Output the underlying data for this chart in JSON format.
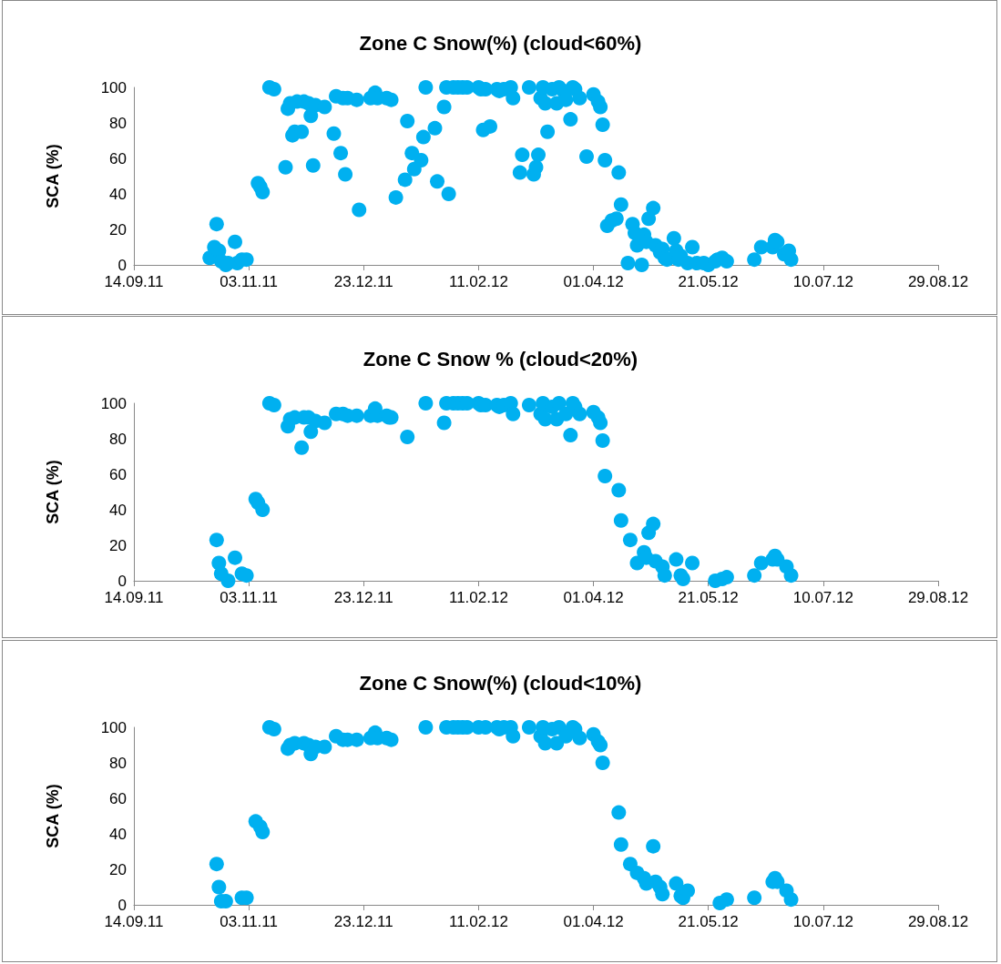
{
  "chart_data": [
    {
      "type": "scatter",
      "title": "Zone C Snow(%) (cloud<60%)",
      "ylabel": "SCA (%)",
      "marker": "circle",
      "color": "#00b0f0",
      "grid": false,
      "xlim": [
        "2011-09-14",
        "2012-08-29"
      ],
      "xticks": [
        {
          "value": "2011-09-14",
          "label": "14.09.11"
        },
        {
          "value": "2011-11-03",
          "label": "03.11.11"
        },
        {
          "value": "2011-12-23",
          "label": "23.12.11"
        },
        {
          "value": "2012-02-11",
          "label": "11.02.12"
        },
        {
          "value": "2012-04-01",
          "label": "01.04.12"
        },
        {
          "value": "2012-05-21",
          "label": "21.05.12"
        },
        {
          "value": "2012-07-10",
          "label": "10.07.12"
        },
        {
          "value": "2012-08-29",
          "label": "29.08.12"
        }
      ],
      "ylim": [
        0,
        100
      ],
      "yticks": [
        0,
        20,
        40,
        60,
        80,
        100
      ],
      "x": [
        "2011-10-17",
        "2011-10-19",
        "2011-10-20",
        "2011-10-21",
        "2011-10-22",
        "2011-10-24",
        "2011-10-25",
        "2011-10-28",
        "2011-10-29",
        "2011-10-31",
        "2011-11-02",
        "2011-11-07",
        "2011-11-08",
        "2011-11-09",
        "2011-11-12",
        "2011-11-14",
        "2011-11-19",
        "2011-11-20",
        "2011-11-21",
        "2011-11-22",
        "2011-11-23",
        "2011-11-24",
        "2011-11-26",
        "2011-11-27",
        "2011-11-29",
        "2011-11-30",
        "2011-12-01",
        "2011-12-02",
        "2011-12-06",
        "2011-12-10",
        "2011-12-11",
        "2011-12-13",
        "2011-12-14",
        "2011-12-15",
        "2011-12-16",
        "2011-12-20",
        "2011-12-21",
        "2011-12-26",
        "2011-12-28",
        "2011-12-29",
        "2012-01-02",
        "2012-01-04",
        "2012-01-06",
        "2012-01-10",
        "2012-01-11",
        "2012-01-13",
        "2012-01-14",
        "2012-01-17",
        "2012-01-18",
        "2012-01-19",
        "2012-01-23",
        "2012-01-24",
        "2012-01-27",
        "2012-01-29",
        "2012-01-28",
        "2012-01-31",
        "2012-02-02",
        "2012-02-04",
        "2012-02-06",
        "2012-02-11",
        "2012-02-12",
        "2012-02-13",
        "2012-02-14",
        "2012-02-16",
        "2012-02-19",
        "2012-02-20",
        "2012-02-22",
        "2012-02-25",
        "2012-02-26",
        "2012-02-29",
        "2012-03-01",
        "2012-03-04",
        "2012-03-06",
        "2012-03-07",
        "2012-03-08",
        "2012-03-09",
        "2012-03-10",
        "2012-03-11",
        "2012-03-12",
        "2012-03-14",
        "2012-03-16",
        "2012-03-17",
        "2012-03-19",
        "2012-03-20",
        "2012-03-22",
        "2012-03-23",
        "2012-03-24",
        "2012-03-26",
        "2012-03-29",
        "2012-04-01",
        "2012-04-03",
        "2012-04-04",
        "2012-04-05",
        "2012-04-06",
        "2012-04-07",
        "2012-04-09",
        "2012-04-11",
        "2012-04-12",
        "2012-04-13",
        "2012-04-16",
        "2012-04-18",
        "2012-04-19",
        "2012-04-20",
        "2012-04-22",
        "2012-04-23",
        "2012-04-24",
        "2012-04-25",
        "2012-04-27",
        "2012-04-28",
        "2012-04-30",
        "2012-05-01",
        "2012-05-02",
        "2012-05-03",
        "2012-05-06",
        "2012-05-07",
        "2012-05-08",
        "2012-05-09",
        "2012-05-12",
        "2012-05-14",
        "2012-05-16",
        "2012-05-19",
        "2012-05-21",
        "2012-05-24",
        "2012-05-25",
        "2012-05-27",
        "2012-05-29",
        "2012-06-10",
        "2012-06-13",
        "2012-06-18",
        "2012-06-19",
        "2012-06-20",
        "2012-06-23",
        "2012-06-25",
        "2012-06-26"
      ],
      "values": [
        4,
        10,
        23,
        8,
        2,
        0,
        1,
        13,
        1,
        3,
        3,
        46,
        44,
        41,
        100,
        99,
        55,
        88,
        91,
        73,
        75,
        92,
        75,
        92,
        91,
        84,
        56,
        90,
        89,
        74,
        95,
        63,
        94,
        51,
        94,
        93,
        31,
        94,
        97,
        94,
        94,
        93,
        38,
        48,
        81,
        63,
        54,
        59,
        72,
        100,
        77,
        47,
        89,
        40,
        100,
        100,
        100,
        100,
        100,
        100,
        99,
        76,
        99,
        78,
        99,
        98,
        99,
        100,
        94,
        52,
        62,
        100,
        51,
        55,
        62,
        94,
        100,
        91,
        75,
        99,
        91,
        100,
        98,
        93,
        82,
        100,
        99,
        94,
        61,
        96,
        92,
        89,
        79,
        59,
        22,
        25,
        26,
        52,
        34,
        1,
        23,
        18,
        11,
        0,
        17,
        13,
        26,
        32,
        11,
        7,
        9,
        4,
        3,
        15,
        8,
        3,
        5,
        1,
        10,
        1,
        1,
        0,
        2,
        3,
        4,
        2,
        3,
        10,
        10,
        14,
        13,
        6,
        8,
        3
      ]
    },
    {
      "type": "scatter",
      "title": "Zone C Snow % (cloud<20%)",
      "ylabel": "SCA (%)",
      "marker": "circle",
      "color": "#00b0f0",
      "grid": false,
      "xlim": [
        "2011-09-14",
        "2012-08-29"
      ],
      "xticks": [
        {
          "value": "2011-09-14",
          "label": "14.09.11"
        },
        {
          "value": "2011-11-03",
          "label": "03.11.11"
        },
        {
          "value": "2011-12-23",
          "label": "23.12.11"
        },
        {
          "value": "2012-02-11",
          "label": "11.02.12"
        },
        {
          "value": "2012-04-01",
          "label": "01.04.12"
        },
        {
          "value": "2012-05-21",
          "label": "21.05.12"
        },
        {
          "value": "2012-07-10",
          "label": "10.07.12"
        },
        {
          "value": "2012-08-29",
          "label": "29.08.12"
        }
      ],
      "ylim": [
        0,
        100
      ],
      "yticks": [
        0,
        20,
        40,
        60,
        80,
        100
      ],
      "x": [
        "2011-10-20",
        "2011-10-21",
        "2011-10-22",
        "2011-10-25",
        "2011-10-28",
        "2011-10-31",
        "2011-11-02",
        "2011-11-06",
        "2011-11-07",
        "2011-11-09",
        "2011-11-12",
        "2011-11-14",
        "2011-11-20",
        "2011-11-21",
        "2011-11-23",
        "2011-11-26",
        "2011-11-27",
        "2011-11-29",
        "2011-11-30",
        "2011-12-02",
        "2011-12-06",
        "2011-12-11",
        "2011-12-14",
        "2011-12-16",
        "2011-12-20",
        "2011-12-26",
        "2011-12-28",
        "2011-12-29",
        "2012-01-02",
        "2012-01-03",
        "2012-01-04",
        "2012-01-11",
        "2012-01-19",
        "2012-01-27",
        "2012-01-28",
        "2012-01-31",
        "2012-02-02",
        "2012-02-04",
        "2012-02-06",
        "2012-02-11",
        "2012-02-12",
        "2012-02-14",
        "2012-02-19",
        "2012-02-20",
        "2012-02-22",
        "2012-02-25",
        "2012-02-26",
        "2012-03-04",
        "2012-03-09",
        "2012-03-10",
        "2012-03-11",
        "2012-03-14",
        "2012-03-16",
        "2012-03-17",
        "2012-03-20",
        "2012-03-22",
        "2012-03-23",
        "2012-03-24",
        "2012-03-26",
        "2012-04-01",
        "2012-04-03",
        "2012-04-04",
        "2012-04-05",
        "2012-04-06",
        "2012-04-12",
        "2012-04-13",
        "2012-04-17",
        "2012-04-20",
        "2012-04-23",
        "2012-04-24",
        "2012-04-25",
        "2012-04-27",
        "2012-04-28",
        "2012-05-01",
        "2012-05-02",
        "2012-05-07",
        "2012-05-09",
        "2012-05-10",
        "2012-05-14",
        "2012-05-24",
        "2012-05-27",
        "2012-05-29",
        "2012-06-10",
        "2012-06-13",
        "2012-06-18",
        "2012-06-19",
        "2012-06-20",
        "2012-06-24",
        "2012-06-26"
      ],
      "values": [
        23,
        10,
        4,
        0,
        13,
        4,
        3,
        46,
        44,
        40,
        100,
        99,
        87,
        91,
        92,
        75,
        92,
        92,
        84,
        90,
        89,
        94,
        94,
        93,
        93,
        93,
        97,
        93,
        93,
        92,
        92,
        81,
        100,
        89,
        100,
        100,
        100,
        100,
        100,
        100,
        99,
        99,
        99,
        98,
        99,
        100,
        94,
        99,
        94,
        100,
        91,
        98,
        91,
        100,
        94,
        82,
        100,
        98,
        94,
        95,
        92,
        89,
        79,
        59,
        51,
        34,
        23,
        10,
        16,
        13,
        27,
        32,
        11,
        8,
        3,
        12,
        3,
        1,
        10,
        0,
        1,
        2,
        3,
        10,
        12,
        14,
        12,
        8,
        3
      ]
    },
    {
      "type": "scatter",
      "title": "Zone C Snow(%) (cloud<10%)",
      "ylabel": "SCA (%)",
      "marker": "circle",
      "color": "#00b0f0",
      "grid": false,
      "xlim": [
        "2011-09-14",
        "2012-08-29"
      ],
      "xticks": [
        {
          "value": "2011-09-14",
          "label": "14.09.11"
        },
        {
          "value": "2011-11-03",
          "label": "03.11.11"
        },
        {
          "value": "2011-12-23",
          "label": "23.12.11"
        },
        {
          "value": "2012-02-11",
          "label": "11.02.12"
        },
        {
          "value": "2012-04-01",
          "label": "01.04.12"
        },
        {
          "value": "2012-05-21",
          "label": "21.05.12"
        },
        {
          "value": "2012-07-10",
          "label": "10.07.12"
        },
        {
          "value": "2012-08-29",
          "label": "29.08.12"
        }
      ],
      "ylim": [
        0,
        100
      ],
      "yticks": [
        0,
        20,
        40,
        60,
        80,
        100
      ],
      "x": [
        "2011-10-20",
        "2011-10-21",
        "2011-10-22",
        "2011-10-24",
        "2011-10-31",
        "2011-11-02",
        "2011-11-06",
        "2011-11-08",
        "2011-11-09",
        "2011-11-12",
        "2011-11-14",
        "2011-11-20",
        "2011-11-21",
        "2011-11-23",
        "2011-11-27",
        "2011-11-29",
        "2011-11-30",
        "2011-12-02",
        "2011-12-06",
        "2011-12-11",
        "2011-12-14",
        "2011-12-16",
        "2011-12-20",
        "2011-12-26",
        "2011-12-28",
        "2011-12-29",
        "2012-01-02",
        "2012-01-04",
        "2012-01-19",
        "2012-01-28",
        "2012-01-31",
        "2012-02-02",
        "2012-02-04",
        "2012-02-06",
        "2012-02-11",
        "2012-02-14",
        "2012-02-19",
        "2012-02-20",
        "2012-02-22",
        "2012-02-25",
        "2012-02-26",
        "2012-03-04",
        "2012-03-09",
        "2012-03-10",
        "2012-03-11",
        "2012-03-14",
        "2012-03-16",
        "2012-03-17",
        "2012-03-20",
        "2012-03-23",
        "2012-03-24",
        "2012-03-26",
        "2012-04-01",
        "2012-04-03",
        "2012-04-04",
        "2012-04-05",
        "2012-04-12",
        "2012-04-13",
        "2012-04-17",
        "2012-04-20",
        "2012-04-23",
        "2012-04-24",
        "2012-04-27",
        "2012-04-28",
        "2012-04-30",
        "2012-05-01",
        "2012-05-07",
        "2012-05-09",
        "2012-05-10",
        "2012-05-12",
        "2012-05-26",
        "2012-05-29",
        "2012-06-10",
        "2012-06-18",
        "2012-06-19",
        "2012-06-20",
        "2012-06-24",
        "2012-06-26"
      ],
      "values": [
        23,
        10,
        2,
        2,
        4,
        4,
        47,
        44,
        41,
        100,
        99,
        88,
        90,
        91,
        91,
        90,
        85,
        89,
        89,
        95,
        93,
        93,
        93,
        94,
        97,
        94,
        94,
        93,
        100,
        100,
        100,
        100,
        100,
        100,
        100,
        100,
        100,
        99,
        100,
        100,
        95,
        100,
        95,
        100,
        91,
        99,
        91,
        100,
        95,
        100,
        99,
        94,
        96,
        92,
        90,
        80,
        52,
        34,
        23,
        18,
        15,
        12,
        33,
        13,
        10,
        6,
        12,
        5,
        4,
        8,
        1,
        3,
        4,
        13,
        15,
        13,
        8,
        3
      ]
    }
  ]
}
